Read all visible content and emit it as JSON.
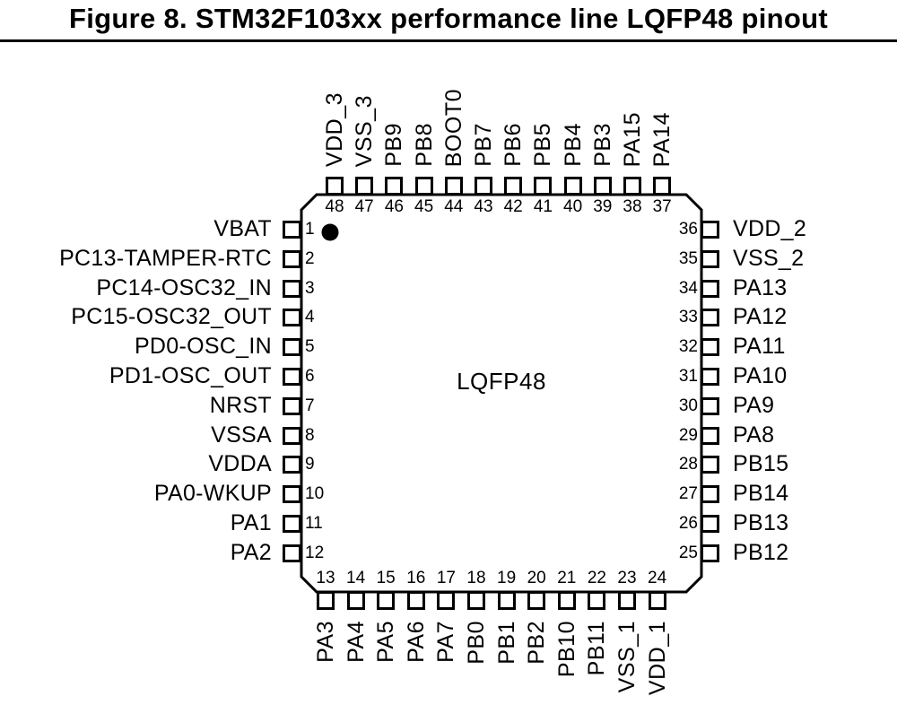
{
  "figure": {
    "title": "Figure 8. STM32F103xx performance line LQFP48 pinout",
    "package_label": "LQFP48"
  },
  "colors": {
    "ink": "#000000",
    "background": "#ffffff"
  },
  "pins": {
    "top": [
      {
        "num": "48",
        "label": "VDD_3"
      },
      {
        "num": "47",
        "label": "VSS_3"
      },
      {
        "num": "46",
        "label": "PB9"
      },
      {
        "num": "45",
        "label": "PB8"
      },
      {
        "num": "44",
        "label": "BOOT0"
      },
      {
        "num": "43",
        "label": "PB7"
      },
      {
        "num": "42",
        "label": "PB6"
      },
      {
        "num": "41",
        "label": "PB5"
      },
      {
        "num": "40",
        "label": "PB4"
      },
      {
        "num": "39",
        "label": "PB3"
      },
      {
        "num": "38",
        "label": "PA15"
      },
      {
        "num": "37",
        "label": "PA14"
      }
    ],
    "left": [
      {
        "num": "1",
        "label": "VBAT"
      },
      {
        "num": "2",
        "label": "PC13-TAMPER-RTC"
      },
      {
        "num": "3",
        "label": "PC14-OSC32_IN"
      },
      {
        "num": "4",
        "label": "PC15-OSC32_OUT"
      },
      {
        "num": "5",
        "label": "PD0-OSC_IN"
      },
      {
        "num": "6",
        "label": "PD1-OSC_OUT"
      },
      {
        "num": "7",
        "label": "NRST"
      },
      {
        "num": "8",
        "label": "VSSA"
      },
      {
        "num": "9",
        "label": "VDDA"
      },
      {
        "num": "10",
        "label": "PA0-WKUP"
      },
      {
        "num": "11",
        "label": "PA1"
      },
      {
        "num": "12",
        "label": "PA2"
      }
    ],
    "right": [
      {
        "num": "36",
        "label": "VDD_2"
      },
      {
        "num": "35",
        "label": "VSS_2"
      },
      {
        "num": "34",
        "label": "PA13"
      },
      {
        "num": "33",
        "label": "PA12"
      },
      {
        "num": "32",
        "label": "PA11"
      },
      {
        "num": "31",
        "label": "PA10"
      },
      {
        "num": "30",
        "label": "PA9"
      },
      {
        "num": "29",
        "label": "PA8"
      },
      {
        "num": "28",
        "label": "PB15"
      },
      {
        "num": "27",
        "label": "PB14"
      },
      {
        "num": "26",
        "label": "PB13"
      },
      {
        "num": "25",
        "label": "PB12"
      }
    ],
    "bottom": [
      {
        "num": "13",
        "label": "PA3"
      },
      {
        "num": "14",
        "label": "PA4"
      },
      {
        "num": "15",
        "label": "PA5"
      },
      {
        "num": "16",
        "label": "PA6"
      },
      {
        "num": "17",
        "label": "PA7"
      },
      {
        "num": "18",
        "label": "PB0"
      },
      {
        "num": "19",
        "label": "PB1"
      },
      {
        "num": "20",
        "label": "PB2"
      },
      {
        "num": "21",
        "label": "PB10"
      },
      {
        "num": "22",
        "label": "PB11"
      },
      {
        "num": "23",
        "label": "VSS_1"
      },
      {
        "num": "24",
        "label": "VDD_1"
      }
    ]
  }
}
